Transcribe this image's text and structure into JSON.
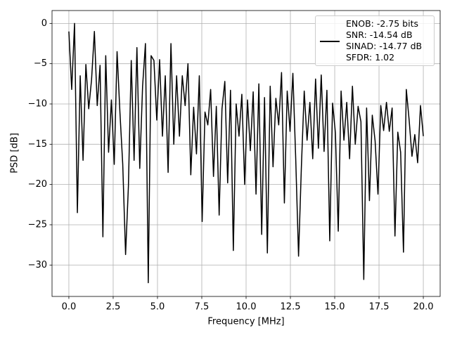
{
  "chart_data": {
    "type": "line",
    "xlabel": "Frequency [MHz]",
    "ylabel": "PSD [dB]",
    "x": [
      0,
      0.16,
      0.32,
      0.48,
      0.64,
      0.8,
      0.96,
      1.12,
      1.28,
      1.44,
      1.6,
      1.76,
      1.92,
      2.08,
      2.24,
      2.4,
      2.56,
      2.72,
      2.88,
      3.04,
      3.2,
      3.36,
      3.52,
      3.68,
      3.84,
      4,
      4.16,
      4.32,
      4.48,
      4.64,
      4.8,
      4.96,
      5.12,
      5.28,
      5.44,
      5.6,
      5.76,
      5.92,
      6.08,
      6.24,
      6.4,
      6.56,
      6.72,
      6.88,
      7.04,
      7.2,
      7.36,
      7.52,
      7.68,
      7.84,
      8,
      8.16,
      8.32,
      8.48,
      8.64,
      8.8,
      8.96,
      9.12,
      9.28,
      9.44,
      9.6,
      9.76,
      9.92,
      10.08,
      10.24,
      10.4,
      10.56,
      10.72,
      10.88,
      11.04,
      11.2,
      11.36,
      11.52,
      11.68,
      11.84,
      12,
      12.16,
      12.32,
      12.48,
      12.64,
      12.8,
      12.96,
      13.12,
      13.28,
      13.44,
      13.6,
      13.76,
      13.92,
      14.08,
      14.24,
      14.4,
      14.56,
      14.72,
      14.88,
      15.04,
      15.2,
      15.36,
      15.52,
      15.68,
      15.84,
      16,
      16.16,
      16.32,
      16.48,
      16.64,
      16.8,
      16.96,
      17.12,
      17.28,
      17.44,
      17.6,
      17.76,
      17.92,
      18.08,
      18.24,
      18.4,
      18.56,
      18.72,
      18.88,
      19.04,
      19.2,
      19.36,
      19.52,
      19.68,
      19.84,
      20
    ],
    "series": [
      {
        "name": "ENOB: -2.75 bits\nSNR: -14.54 dB\nSINAD: -14.77 dB\nSFDR: 1.02",
        "color": "#000000",
        "values": [
          -1,
          -8.2,
          0,
          -23.5,
          -6.5,
          -17,
          -5.1,
          -10.6,
          -7,
          -1,
          -10.2,
          -5.2,
          -26.5,
          -4,
          -16,
          -9.5,
          -17.5,
          -3.5,
          -11,
          -17.5,
          -28.7,
          -20.2,
          -4.6,
          -17,
          -3,
          -18,
          -7.8,
          -2.5,
          -32.2,
          -4,
          -4.6,
          -12,
          -4.5,
          -14,
          -6.5,
          -18.5,
          -2.5,
          -15,
          -6.5,
          -14,
          -6.5,
          -10.2,
          -5,
          -18.8,
          -10.4,
          -16.2,
          -6.5,
          -24.6,
          -11,
          -12.6,
          -8.2,
          -19,
          -10.3,
          -23.8,
          -10.6,
          -7.2,
          -19.8,
          -8.3,
          -28.2,
          -10,
          -14,
          -8.8,
          -20,
          -9.5,
          -15.8,
          -8.5,
          -21.2,
          -7.5,
          -26.2,
          -9.2,
          -28.5,
          -7.8,
          -17.8,
          -9.3,
          -12.6,
          -6.1,
          -22.3,
          -8.4,
          -13.4,
          -6.2,
          -16.8,
          -28.9,
          -17.8,
          -8.4,
          -14.5,
          -9.8,
          -16.8,
          -6.9,
          -15.5,
          -6.4,
          -15.9,
          -8.3,
          -27,
          -9.9,
          -13.6,
          -25.8,
          -8.4,
          -14.5,
          -9.8,
          -16.8,
          -7.8,
          -15,
          -10.3,
          -12.2,
          -31.8,
          -10.5,
          -22,
          -11.4,
          -14.6,
          -21.2,
          -10.2,
          -13.3,
          -9.8,
          -13.4,
          -10.5,
          -26.4,
          -13.5,
          -16,
          -28.4,
          -8.2,
          -12,
          -16.5,
          -13.8,
          -17.3,
          -10.2,
          -14
        ]
      }
    ],
    "xlim": [
      -0.95,
      20.95
    ],
    "ylim": [
      -33.9,
      1.6
    ],
    "xticks": [
      {
        "value": 0,
        "label": "0.0"
      },
      {
        "value": 2.5,
        "label": "2.5"
      },
      {
        "value": 5,
        "label": "5.0"
      },
      {
        "value": 7.5,
        "label": "7.5"
      },
      {
        "value": 10,
        "label": "10.0"
      },
      {
        "value": 12.5,
        "label": "12.5"
      },
      {
        "value": 15,
        "label": "15.0"
      },
      {
        "value": 17.5,
        "label": "17.5"
      },
      {
        "value": 20,
        "label": "20.0"
      }
    ],
    "yticks": [
      {
        "value": 0,
        "label": "0"
      },
      {
        "value": -5,
        "label": "−5"
      },
      {
        "value": -10,
        "label": "−10"
      },
      {
        "value": -15,
        "label": "−15"
      },
      {
        "value": -20,
        "label": "−20"
      },
      {
        "value": -25,
        "label": "−25"
      },
      {
        "value": -30,
        "label": "−30"
      }
    ],
    "grid": true,
    "legend": "upper right"
  }
}
